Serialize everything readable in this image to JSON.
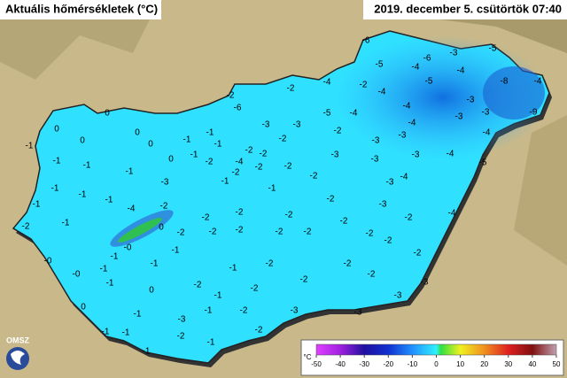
{
  "header": {
    "title": "Aktuális hőmérsékletek (°C)",
    "datetime": "2019. december 5. csütörtök 07:40"
  },
  "map": {
    "labels": [
      "-6",
      "-6",
      "-3",
      "-5",
      "-5",
      "-4",
      "-5",
      "-4",
      "-2",
      "-4",
      "-4",
      "-2",
      "-2",
      "-6",
      "-8",
      "-4",
      "-9",
      "-3",
      "-3",
      "-5",
      "-4",
      "-4",
      "-3",
      "-3",
      "-3",
      "-2",
      "-4",
      "-3",
      "-4",
      "-3",
      "-2",
      "-2",
      "-2",
      "-4",
      "-2",
      "-2",
      "-3",
      "-3",
      "-5",
      "-3",
      "-4",
      "-3",
      "-4",
      "0",
      "0",
      "0",
      "0",
      "0",
      "-1",
      "0",
      "-2",
      "-1",
      "-1",
      "-1",
      "-1",
      "-1",
      "-1",
      "-1",
      "-3",
      "-1",
      "-2",
      "-1",
      "-2",
      "-2",
      "-3",
      "-2",
      "-4",
      "-1",
      "-1",
      "-1",
      "-2",
      "-1",
      "-1",
      "-4",
      "-2",
      "-2",
      "-2",
      "-2",
      "-2",
      "-2",
      "-2",
      "-2",
      "-2",
      "-2",
      "-2",
      "-2",
      "-2",
      "0",
      "-0",
      "-1",
      "-1",
      "-0",
      "-0",
      "-1",
      "-1",
      "-1",
      "-2",
      "-2",
      "-2",
      "-2",
      "-3",
      "0",
      "0",
      "-1",
      "-2",
      "-2",
      "-1",
      "-3",
      "-1",
      "-1",
      "-3",
      "-1",
      "-2",
      "-3",
      "-3",
      "-1",
      "-2",
      "-1",
      "-2",
      "-1"
    ]
  },
  "legend": {
    "unit": "°C",
    "ticks": [
      -50,
      -40,
      -30,
      -20,
      -10,
      0,
      10,
      20,
      30,
      40,
      50
    ]
  },
  "logo": "OMSZ"
}
